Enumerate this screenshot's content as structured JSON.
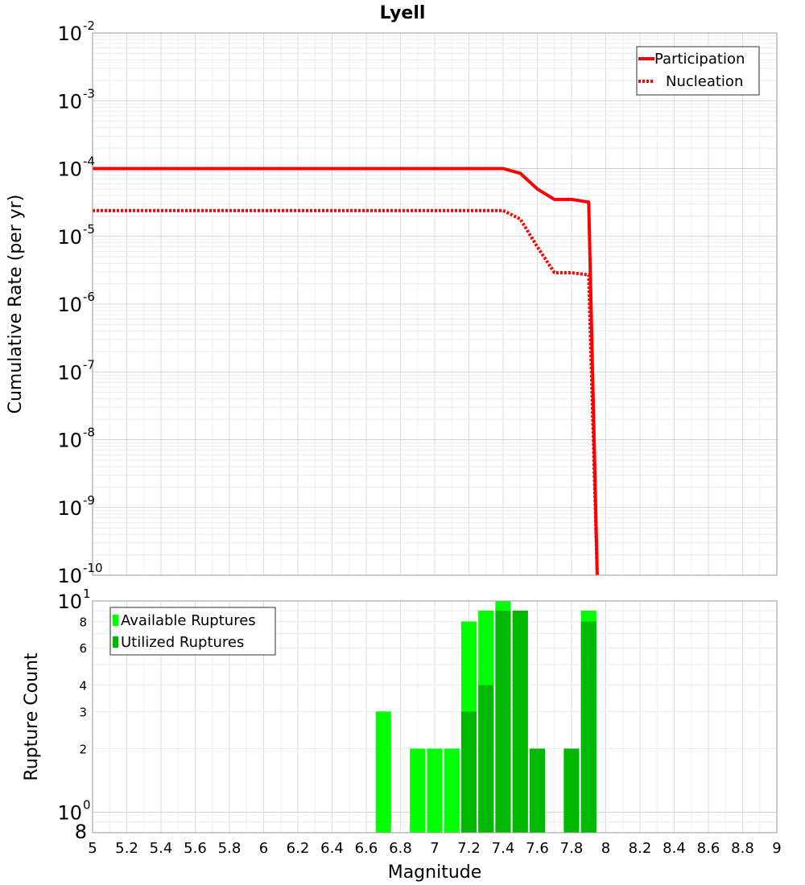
{
  "chart_data": [
    {
      "type": "line",
      "title": "Lyell",
      "xlabel": "",
      "ylabel": "Cumulative Rate (per yr)",
      "y_scale": "log",
      "xlim": [
        5,
        9
      ],
      "ylim": [
        1e-10,
        0.01
      ],
      "y_tick_labels": [
        {
          "base": "10",
          "exp": "-10"
        },
        {
          "base": "10",
          "exp": "-9"
        },
        {
          "base": "10",
          "exp": "-8"
        },
        {
          "base": "10",
          "exp": "-7"
        },
        {
          "base": "10",
          "exp": "-6"
        },
        {
          "base": "10",
          "exp": "-5"
        },
        {
          "base": "10",
          "exp": "-4"
        },
        {
          "base": "10",
          "exp": "-3"
        },
        {
          "base": "10",
          "exp": "-2"
        }
      ],
      "grid": true,
      "legend_position": "top-right",
      "series": [
        {
          "name": "Participation",
          "color": "#ff0000",
          "style": "solid",
          "x": [
            5.0,
            5.5,
            6.0,
            6.5,
            7.0,
            7.25,
            7.4,
            7.5,
            7.6,
            7.7,
            7.8,
            7.9,
            7.95
          ],
          "y": [
            0.0001,
            0.0001,
            0.0001,
            0.0001,
            0.0001,
            0.0001,
            0.0001,
            8.5e-05,
            5e-05,
            3.5e-05,
            3.5e-05,
            3.2e-05,
            1e-10
          ]
        },
        {
          "name": "Nucleation",
          "color": "#ff0000",
          "style": "dotted",
          "x": [
            5.0,
            5.5,
            6.0,
            6.5,
            7.0,
            7.25,
            7.4,
            7.5,
            7.6,
            7.7,
            7.8,
            7.9,
            7.95
          ],
          "y": [
            2.4e-05,
            2.4e-05,
            2.4e-05,
            2.4e-05,
            2.4e-05,
            2.4e-05,
            2.4e-05,
            1.8e-05,
            7e-06,
            2.9e-06,
            2.9e-06,
            2.7e-06,
            1e-10
          ]
        }
      ]
    },
    {
      "type": "bar",
      "title": "",
      "xlabel": "Magnitude",
      "ylabel": "Rupture Count",
      "y_scale": "log",
      "xlim": [
        5,
        9
      ],
      "ylim": [
        0.8,
        10
      ],
      "x_ticks": [
        "5",
        "5.2",
        "5.4",
        "5.6",
        "5.8",
        "6",
        "6.2",
        "6.4",
        "6.6",
        "6.8",
        "7",
        "7.2",
        "7.4",
        "7.6",
        "7.8",
        "8",
        "8.2",
        "8.4",
        "8.6",
        "8.8",
        "9"
      ],
      "y_ticks_minor": [
        {
          "value": 2,
          "label": "2"
        },
        {
          "value": 3,
          "label": "3"
        },
        {
          "value": 4,
          "label": "4"
        },
        {
          "value": 6,
          "label": "6"
        },
        {
          "value": 8,
          "label": "8"
        }
      ],
      "y_ticks_major": [
        {
          "value": 0.8,
          "label": "8",
          "exp": ""
        },
        {
          "value": 1,
          "label": "10",
          "exp": "0"
        },
        {
          "value": 10,
          "label": "10",
          "exp": "1"
        }
      ],
      "grid": true,
      "legend_position": "top-left",
      "bar_width": 0.09,
      "series": [
        {
          "name": "Available Ruptures",
          "color": "#00ff00",
          "x": [
            6.7,
            6.9,
            7.0,
            7.1,
            7.2,
            7.3,
            7.4,
            7.5,
            7.6,
            7.8,
            7.9
          ],
          "values": [
            3,
            2,
            2,
            2,
            8,
            9,
            10,
            9,
            2,
            2,
            9
          ]
        },
        {
          "name": "Utilized Ruptures",
          "color": "#00b800",
          "x": [
            7.2,
            7.3,
            7.4,
            7.5,
            7.6,
            7.8,
            7.9
          ],
          "values": [
            3,
            4,
            9,
            9,
            2,
            2,
            8
          ]
        }
      ]
    }
  ]
}
